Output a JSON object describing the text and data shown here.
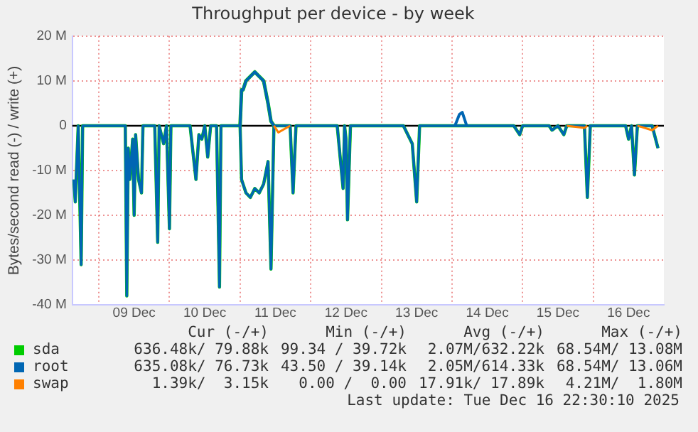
{
  "chart_data": {
    "type": "line",
    "title": "Throughput per device - by week",
    "ylabel": "Bytes/second read (-) / write (+)",
    "x": [
      "2025-12-08T15:30",
      "2025-12-08T16:00",
      "2025-12-08T17:00",
      "2025-12-08T18:00",
      "2025-12-08T18:30",
      "2025-12-08T20:00",
      "2025-12-09T06:00",
      "2025-12-09T09:00",
      "2025-12-09T09:30",
      "2025-12-09T10:00",
      "2025-12-09T10:30",
      "2025-12-09T11:30",
      "2025-12-09T12:00",
      "2025-12-09T12:30",
      "2025-12-09T13:30",
      "2025-12-09T14:30",
      "2025-12-09T15:00",
      "2025-12-09T19:00",
      "2025-12-09T20:00",
      "2025-12-09T20:30",
      "2025-12-09T22:00",
      "2025-12-09T23:00",
      "2025-12-10T00:00",
      "2025-12-10T00:30",
      "2025-12-10T07:00",
      "2025-12-10T09:00",
      "2025-12-10T10:00",
      "2025-12-10T11:00",
      "2025-12-10T12:00",
      "2025-12-10T13:00",
      "2025-12-10T14:00",
      "2025-12-10T16:00",
      "2025-12-10T17:00",
      "2025-12-10T17:30",
      "2025-12-11T00:00",
      "2025-12-11T00:30",
      "2025-12-11T01:00",
      "2025-12-11T02:00",
      "2025-12-11T03:30",
      "2025-12-11T05:00",
      "2025-12-11T06:30",
      "2025-12-11T08:00",
      "2025-12-11T09:30",
      "2025-12-11T10:30",
      "2025-12-11T11:30",
      "2025-12-11T13:00",
      "2025-12-11T17:00",
      "2025-12-11T18:00",
      "2025-12-11T19:00",
      "2025-12-12T09:00",
      "2025-12-12T11:00",
      "2025-12-12T11:30",
      "2025-12-12T12:00",
      "2025-12-12T12:30",
      "2025-12-12T13:30",
      "2025-12-13T07:30",
      "2025-12-13T10:30",
      "2025-12-13T12:00",
      "2025-12-13T13:00",
      "2025-12-14T01:00",
      "2025-12-14T02:30",
      "2025-12-14T03:30",
      "2025-12-14T05:00",
      "2025-12-14T21:00",
      "2025-12-14T23:00",
      "2025-12-15T00:00",
      "2025-12-15T09:00",
      "2025-12-15T10:00",
      "2025-12-15T12:00",
      "2025-12-15T14:00",
      "2025-12-15T15:00",
      "2025-12-15T21:00",
      "2025-12-15T22:00",
      "2025-12-15T23:00",
      "2025-12-16T11:00",
      "2025-12-16T12:00",
      "2025-12-16T13:00",
      "2025-12-16T14:00",
      "2025-12-16T15:00",
      "2025-12-16T20:00",
      "2025-12-16T22:00"
    ],
    "xlim": [
      "2025-12-08T15:00",
      "2025-12-17T00:00"
    ],
    "xticks": [
      {
        "value": "2025-12-09T00:00",
        "label": null
      },
      {
        "value": "2025-12-09T12:00",
        "label": "09 Dec"
      },
      {
        "value": "2025-12-10T00:00",
        "label": null
      },
      {
        "value": "2025-12-10T12:00",
        "label": "10 Dec"
      },
      {
        "value": "2025-12-11T00:00",
        "label": null
      },
      {
        "value": "2025-12-11T12:00",
        "label": "11 Dec"
      },
      {
        "value": "2025-12-12T00:00",
        "label": null
      },
      {
        "value": "2025-12-12T12:00",
        "label": "12 Dec"
      },
      {
        "value": "2025-12-13T00:00",
        "label": null
      },
      {
        "value": "2025-12-13T12:00",
        "label": "13 Dec"
      },
      {
        "value": "2025-12-14T00:00",
        "label": null
      },
      {
        "value": "2025-12-14T12:00",
        "label": "14 Dec"
      },
      {
        "value": "2025-12-15T00:00",
        "label": null
      },
      {
        "value": "2025-12-15T12:00",
        "label": "15 Dec"
      },
      {
        "value": "2025-12-16T00:00",
        "label": null
      },
      {
        "value": "2025-12-16T12:00",
        "label": "16 Dec"
      }
    ],
    "ylim": [
      -40,
      20
    ],
    "yticks": [
      {
        "value": -40,
        "label": "-40 M"
      },
      {
        "value": -30,
        "label": "-30 M"
      },
      {
        "value": -20,
        "label": "-20 M"
      },
      {
        "value": -10,
        "label": "-10 M"
      },
      {
        "value": 0,
        "label": "0"
      },
      {
        "value": 10,
        "label": "10 M"
      },
      {
        "value": 20,
        "label": "20 M"
      }
    ],
    "grid": true,
    "legend": "bottom",
    "marker": "none",
    "line_style": "solid",
    "ref_lines": [
      {
        "axis": "y",
        "value": 0,
        "color": "#000000"
      }
    ],
    "series": [
      {
        "name": "sda",
        "color": "#00cc00",
        "values": [
          null,
          null,
          null,
          null,
          null,
          null,
          null,
          null,
          null,
          null,
          null,
          null,
          null,
          null,
          null,
          null,
          null,
          null,
          null,
          null,
          null,
          null,
          null,
          null,
          null,
          null,
          null,
          null,
          null,
          null,
          null,
          null,
          null,
          null,
          0,
          8,
          8,
          10,
          11,
          12,
          11,
          10,
          5,
          1,
          0,
          null,
          null,
          null,
          null,
          null,
          null,
          null,
          null,
          null,
          null,
          null,
          null,
          null,
          null,
          null,
          null,
          null,
          null,
          null,
          null,
          null,
          null,
          null,
          null,
          null,
          null,
          null,
          null,
          null,
          null,
          null,
          null,
          null,
          null,
          null,
          null
        ]
      },
      {
        "color": "#00cc00",
        "values": [
          -12,
          -17,
          0,
          -31,
          0,
          0,
          0,
          0,
          -38,
          -5,
          -12,
          -3,
          -20,
          -2,
          -12,
          -15,
          0,
          0,
          -26,
          0,
          -4,
          0,
          -23,
          0,
          0,
          -12,
          -2,
          -3,
          0,
          -7,
          0,
          0,
          -36,
          0,
          0,
          -12,
          -13,
          -15,
          -16,
          -14,
          -15,
          -13,
          -8,
          -32,
          0,
          0,
          0,
          -15,
          0,
          0,
          -14,
          0,
          -3,
          -21,
          0,
          0,
          -4,
          -17,
          0,
          0,
          0,
          0,
          0,
          0,
          -2,
          0,
          0,
          -1,
          0,
          -2,
          0,
          0,
          -16,
          0,
          0,
          -3,
          0,
          -11,
          0,
          0,
          -5
        ]
      },
      {
        "name": "root",
        "color": "#0066b3",
        "values": [
          null,
          null,
          null,
          null,
          null,
          null,
          null,
          null,
          null,
          null,
          null,
          null,
          null,
          null,
          null,
          null,
          null,
          null,
          null,
          null,
          null,
          null,
          null,
          null,
          null,
          null,
          null,
          null,
          null,
          null,
          null,
          null,
          null,
          null,
          0,
          8,
          8,
          10,
          11,
          12,
          11,
          10,
          5,
          1,
          0,
          null,
          null,
          null,
          null,
          null,
          null,
          null,
          null,
          null,
          null,
          null,
          null,
          null,
          null,
          0,
          2.5,
          3,
          0,
          null,
          null,
          null,
          null,
          null,
          null,
          null,
          null,
          null,
          null,
          null,
          null,
          null,
          null,
          null,
          null,
          null,
          null
        ]
      },
      {
        "color": "#0066b3",
        "values": [
          -12,
          -17,
          0,
          -31,
          0,
          0,
          0,
          0,
          -38,
          -5,
          -12,
          -3,
          -20,
          -2,
          -12,
          -15,
          0,
          0,
          -26,
          0,
          -4,
          0,
          -23,
          0,
          0,
          -12,
          -2,
          -3,
          0,
          -7,
          0,
          0,
          -36,
          0,
          0,
          -12,
          -13,
          -15,
          -16,
          -14,
          -15,
          -13,
          -8,
          -32,
          0,
          0,
          0,
          -15,
          0,
          0,
          -14,
          0,
          -3,
          -21,
          0,
          0,
          -4,
          -17,
          0,
          0,
          0,
          0,
          0,
          0,
          -2,
          0,
          0,
          -1,
          0,
          -2,
          0,
          0,
          -16,
          0,
          0,
          -3,
          0,
          -11,
          0,
          0,
          -5
        ]
      },
      {
        "name": "swap",
        "color": "#ff8000",
        "values": [
          null,
          null,
          null,
          null,
          null,
          null,
          null,
          null,
          null,
          null,
          null,
          null,
          null,
          null,
          null,
          null,
          null,
          null,
          null,
          null,
          null,
          null,
          null,
          null,
          null,
          null,
          null,
          null,
          null,
          null,
          null,
          null,
          null,
          null,
          null,
          null,
          null,
          null,
          null,
          null,
          null,
          null,
          null,
          null,
          0,
          -1.5,
          0,
          null,
          null,
          null,
          null,
          null,
          null,
          null,
          null,
          null,
          null,
          null,
          null,
          null,
          null,
          null,
          null,
          null,
          null,
          null,
          null,
          null,
          null,
          null,
          0,
          -0.5,
          0,
          null,
          null,
          null,
          null,
          null,
          0,
          -1,
          0
        ]
      }
    ],
    "annotations": [
      "Cur (-/+)",
      "Min (-/+)",
      "Avg (-/+)",
      "Max (-/+)",
      "636.48k/ 79.88k",
      "99.34 / 39.72k",
      "2.07M/632.22k",
      "68.54M/ 13.08M",
      "635.08k/ 76.73k",
      "43.50 / 39.14k",
      "2.05M/614.33k",
      "68.54M/ 13.06M",
      "1.39k/  3.15k",
      "0.00 /  0.00",
      "17.91k/ 17.89k",
      "4.21M/  1.80M",
      "Last update: Tue Dec 16 22:30:10 2025"
    ]
  }
}
